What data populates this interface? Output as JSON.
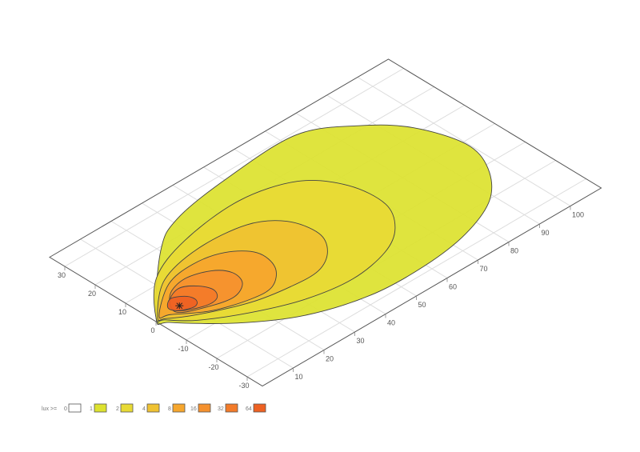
{
  "chart_data": {
    "type": "contour",
    "title": "",
    "projection": "isometric",
    "grid": true,
    "xlim": [
      0,
      110
    ],
    "ylim": [
      -35,
      35
    ],
    "x_ticks": [
      10,
      20,
      30,
      40,
      50,
      60,
      70,
      80,
      90,
      100
    ],
    "y_ticks": [
      30,
      20,
      10,
      0,
      -10,
      -20,
      -30
    ],
    "light_source": [
      8.2,
      0.6
    ],
    "legend": {
      "label": "lux >=",
      "placement": "bottom-left",
      "entries": [
        {
          "level": "0",
          "color": "#ffffff"
        },
        {
          "level": "1",
          "color": "#dde22f"
        },
        {
          "level": "2",
          "color": "#e8da35"
        },
        {
          "level": "4",
          "color": "#efc232"
        },
        {
          "level": "8",
          "color": "#f6a62d"
        },
        {
          "level": "16",
          "color": "#f5912e"
        },
        {
          "level": "32",
          "color": "#f37b29"
        },
        {
          "level": "64",
          "color": "#ee6122"
        }
      ]
    },
    "contours": [
      {
        "level": 1,
        "color": "#dde22f",
        "points": [
          [
            1,
            1
          ],
          [
            20.2,
            18.9
          ],
          [
            31.6,
            25
          ],
          [
            50.4,
            28.1
          ],
          [
            74,
            29
          ],
          [
            87.2,
            21.2
          ],
          [
            95.4,
            12.1
          ],
          [
            99.7,
            -1
          ],
          [
            96.7,
            -11.2
          ],
          [
            88.3,
            -20.3
          ],
          [
            75,
            -25.8
          ],
          [
            59.6,
            -28
          ],
          [
            42.8,
            -27.4
          ],
          [
            26.2,
            -22.3
          ],
          [
            13.1,
            -13.6
          ],
          [
            2.2,
            -2.6
          ]
        ]
      },
      {
        "level": 2,
        "color": "#e8da35",
        "points": [
          [
            1,
            1
          ],
          [
            12,
            12
          ],
          [
            27,
            17.8
          ],
          [
            46.7,
            20
          ],
          [
            61.7,
            15.9
          ],
          [
            68.9,
            6.6
          ],
          [
            70,
            -4.6
          ],
          [
            65,
            -12.8
          ],
          [
            56.8,
            -17.8
          ],
          [
            44.1,
            -20
          ],
          [
            30.6,
            -17.9
          ],
          [
            18.1,
            -12.8
          ],
          [
            7.3,
            -6.4
          ],
          [
            2,
            -1
          ]
        ]
      },
      {
        "level": 4,
        "color": "#efc232",
        "points": [
          [
            1.5,
            1
          ],
          [
            12.7,
            10.1
          ],
          [
            27,
            13.4
          ],
          [
            41.4,
            12.1
          ],
          [
            49,
            6.6
          ],
          [
            51,
            -1.9
          ],
          [
            47.4,
            -8.4
          ],
          [
            40.7,
            -12.2
          ],
          [
            31.9,
            -12.1
          ],
          [
            20.9,
            -10
          ],
          [
            8.8,
            -4.8
          ],
          [
            2.5,
            -0.8
          ]
        ]
      },
      {
        "level": 8,
        "color": "#f6a62d",
        "points": [
          [
            2,
            1
          ],
          [
            12.3,
            8.3
          ],
          [
            21.7,
            9.9
          ],
          [
            30.2,
            8
          ],
          [
            35.5,
            2.7
          ],
          [
            34.5,
            -4.2
          ],
          [
            28.8,
            -9.1
          ],
          [
            21.8,
            -9.1
          ],
          [
            12,
            -5.9
          ],
          [
            4.3,
            -0.4
          ]
        ]
      },
      {
        "level": 16,
        "color": "#f5912e",
        "points": [
          [
            9.7,
            5.2
          ],
          [
            16.4,
            7.2
          ],
          [
            23,
            5.1
          ],
          [
            26,
            1.2
          ],
          [
            24.8,
            -3.3
          ],
          [
            19.8,
            -5.8
          ],
          [
            13.3,
            -4.5
          ],
          [
            5.9,
            -0.6
          ]
        ]
      },
      {
        "level": 32,
        "color": "#f37b29",
        "points": [
          [
            8.2,
            3.7
          ],
          [
            12.9,
            5.5
          ],
          [
            16.7,
            3
          ],
          [
            18.2,
            -0.6
          ],
          [
            16.2,
            -3.5
          ],
          [
            11.8,
            -3.4
          ],
          [
            6.3,
            -0.2
          ]
        ]
      },
      {
        "level": 64,
        "color": "#ee6122",
        "points": [
          [
            8.7,
            4
          ],
          [
            12,
            2
          ],
          [
            12.5,
            -0.6
          ],
          [
            10.5,
            -2.1
          ],
          [
            6.7,
            -0.6
          ],
          [
            5.7,
            1.8
          ]
        ]
      }
    ]
  }
}
